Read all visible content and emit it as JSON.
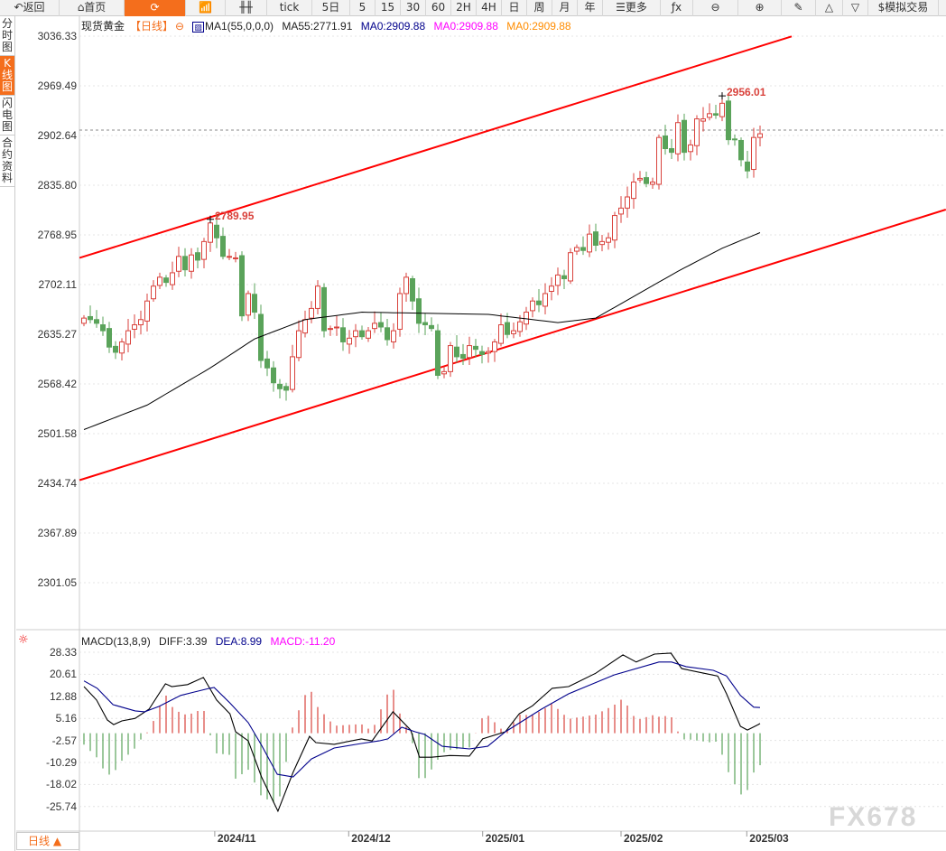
{
  "toolbar": {
    "items": [
      {
        "label": "↶返回",
        "icon": "back-icon",
        "w": 66
      },
      {
        "label": "⌂首页",
        "icon": "home-icon",
        "w": 72
      },
      {
        "label": "⟳",
        "icon": "refresh-icon",
        "w": 68,
        "active": true
      },
      {
        "label": "📶",
        "icon": "chart-icon",
        "w": 44
      },
      {
        "label": "╫╫",
        "icon": "candlestick-icon",
        "w": 46
      },
      {
        "label": "tick",
        "w": 50
      },
      {
        "label": "5日",
        "w": 42
      },
      {
        "label": "5",
        "w": 28
      },
      {
        "label": "15",
        "w": 28
      },
      {
        "label": "30",
        "w": 28
      },
      {
        "label": "60",
        "w": 28
      },
      {
        "label": "2H",
        "w": 28
      },
      {
        "label": "4H",
        "w": 28
      },
      {
        "label": "日",
        "w": 28
      },
      {
        "label": "周",
        "w": 28
      },
      {
        "label": "月",
        "w": 28
      },
      {
        "label": "年",
        "w": 28
      },
      {
        "label": "☰更多",
        "icon": "menu-icon",
        "w": 64
      },
      {
        "label": "ƒx",
        "icon": "formula-icon",
        "w": 36
      },
      {
        "label": "⊖",
        "icon": "zoom-out-icon",
        "w": 50
      },
      {
        "label": "⊕",
        "icon": "zoom-in-icon",
        "w": 48
      },
      {
        "label": "✎",
        "icon": "pen-icon",
        "w": 38
      },
      {
        "label": "△",
        "icon": "triangle-up-icon",
        "w": 30
      },
      {
        "label": "▽",
        "icon": "triangle-down-icon",
        "w": 28
      },
      {
        "label": "$模拟交易",
        "icon": "dollar-icon",
        "w": 78
      }
    ]
  },
  "sidebar": {
    "tabs": [
      {
        "label": "分时图"
      },
      {
        "label": "K线图",
        "active": true
      },
      {
        "label": "闪电图"
      },
      {
        "label": "合约资料"
      }
    ]
  },
  "legend": {
    "name": "现货黄金",
    "period": "【日线】",
    "ma_def": "MA1(55,0,0,0)",
    "ma55": "MA55:2771.91",
    "ma0a": "MA0:2909.88",
    "ma0b": "MA0:2909.88",
    "ma0c": "MA0:2909.88"
  },
  "macd_legend": {
    "name": "MACD(13,8,9)",
    "diff": "DIFF:3.39",
    "dea": "DEA:8.99",
    "macd": "MACD:-11.20"
  },
  "period_button": "日线 ▲",
  "watermark": "FX678",
  "colors": {
    "up": "#d9423c",
    "down": "#5aa35a",
    "channel": "#ff0000",
    "accent": "#f46e1c",
    "dea": "#00008b",
    "ma0a": "#00008b",
    "ma0b": "#ff00ff",
    "ma0c": "#ff8c00"
  },
  "chart_data": [
    {
      "type": "candlestick",
      "title": "现货黄金 日线",
      "y_ticks": [
        "3036.33",
        "2969.49",
        "2902.64",
        "2835.80",
        "2768.95",
        "2702.11",
        "2635.27",
        "2568.42",
        "2501.58",
        "2434.74",
        "2367.89",
        "2301.05"
      ],
      "ylim": [
        2301.05,
        3036.33
      ],
      "x_ticks": [
        {
          "label": "2024/11",
          "index": 20.7
        },
        {
          "label": "2024/12",
          "index": 41.9
        },
        {
          "label": "2025/01",
          "index": 63.1
        },
        {
          "label": "2025/02",
          "index": 85
        },
        {
          "label": "2025/03",
          "index": 104.9
        }
      ],
      "closes": [
        2657,
        2655,
        2650,
        2640,
        2618,
        2611,
        2625,
        2640,
        2648,
        2655,
        2680,
        2700,
        2712,
        2705,
        2718,
        2740,
        2722,
        2742,
        2735,
        2760,
        2785,
        2765,
        2740,
        2740,
        2738,
        2660,
        2690,
        2665,
        2600,
        2590,
        2570,
        2562,
        2560,
        2605,
        2640,
        2655,
        2670,
        2700,
        2640,
        2643,
        2645,
        2625,
        2630,
        2640,
        2632,
        2640,
        2650,
        2645,
        2628,
        2640,
        2690,
        2712,
        2680,
        2650,
        2648,
        2643,
        2580,
        2585,
        2620,
        2605,
        2603,
        2620,
        2615,
        2608,
        2612,
        2625,
        2648,
        2635,
        2640,
        2652,
        2665,
        2680,
        2675,
        2690,
        2700,
        2715,
        2710,
        2745,
        2752,
        2748,
        2770,
        2755,
        2760,
        2765,
        2795,
        2805,
        2820,
        2840,
        2845,
        2838,
        2840,
        2900,
        2885,
        2880,
        2920,
        2880,
        2890,
        2925,
        2925,
        2932,
        2930,
        2946,
        2897,
        2897,
        2870,
        2855,
        2900,
        2905
      ],
      "annotations": [
        {
          "label": "2789.95",
          "index": 20,
          "value": 2789.95
        },
        {
          "label": "2956.01",
          "index": 101,
          "value": 2956.01
        }
      ],
      "last_price": 2909.88,
      "ma55_points": [
        [
          0,
          2507
        ],
        [
          10,
          2540
        ],
        [
          20,
          2590
        ],
        [
          27,
          2629
        ],
        [
          35,
          2655
        ],
        [
          44,
          2665
        ],
        [
          64,
          2662
        ],
        [
          75,
          2651
        ],
        [
          81,
          2657
        ],
        [
          94,
          2720
        ],
        [
          101,
          2751
        ],
        [
          107,
          2772
        ]
      ],
      "channel_upper": [
        [
          -0.7,
          2738
        ],
        [
          112,
          3036
        ]
      ],
      "channel_lower": [
        [
          -0.7,
          2439
        ],
        [
          136.4,
          2803
        ]
      ]
    },
    {
      "type": "line+bar",
      "title": "MACD(13,8,9)",
      "y_ticks": [
        "28.33",
        "20.61",
        "12.88",
        "5.16",
        "-2.57",
        "-10.29",
        "-18.02",
        "-25.74"
      ],
      "ylim": [
        -25.74,
        28.33
      ],
      "diff_points": [
        [
          0,
          16.3
        ],
        [
          2,
          11.6
        ],
        [
          3.7,
          4.6
        ],
        [
          4.7,
          3.0
        ],
        [
          6,
          4.3
        ],
        [
          8.1,
          5.2
        ],
        [
          10.3,
          8.4
        ],
        [
          12.9,
          17.3
        ],
        [
          13.9,
          16.3
        ],
        [
          16.4,
          17
        ],
        [
          18.9,
          19.5
        ],
        [
          21,
          11.6
        ],
        [
          23.1,
          6.8
        ],
        [
          24,
          0.5
        ],
        [
          26,
          -2.7
        ],
        [
          28.1,
          -15.3
        ],
        [
          30.7,
          -27.3
        ],
        [
          33.1,
          -13.7
        ],
        [
          35.7,
          -1.1
        ],
        [
          36.7,
          -3.3
        ],
        [
          39.6,
          -3.9
        ],
        [
          43.9,
          -2
        ],
        [
          45.6,
          -2.7
        ],
        [
          48.9,
          7.5
        ],
        [
          51.7,
          1.1
        ],
        [
          53.1,
          -8.4
        ],
        [
          55,
          -8.4
        ],
        [
          57.9,
          -7.8
        ],
        [
          61,
          -8
        ],
        [
          63.1,
          -2
        ],
        [
          66.7,
          0.5
        ],
        [
          68.9,
          6.8
        ],
        [
          71,
          9.6
        ],
        [
          74.1,
          15.7
        ],
        [
          76.7,
          16.3
        ],
        [
          81,
          21
        ],
        [
          85.3,
          27.4
        ],
        [
          87.4,
          24.9
        ],
        [
          90.3,
          27.7
        ],
        [
          92.9,
          28
        ],
        [
          94.6,
          22.6
        ],
        [
          98.1,
          21
        ],
        [
          100.3,
          20
        ],
        [
          101.7,
          13.8
        ],
        [
          103.9,
          2.4
        ],
        [
          105,
          1.1
        ],
        [
          106.7,
          3.0
        ],
        [
          107,
          3.39
        ]
      ],
      "dea_points": [
        [
          0,
          18.3
        ],
        [
          2.1,
          15.7
        ],
        [
          4.6,
          10
        ],
        [
          8.1,
          7.8
        ],
        [
          9.6,
          7.5
        ],
        [
          11.9,
          9.4
        ],
        [
          15.3,
          13.2
        ],
        [
          17.4,
          14.4
        ],
        [
          19.9,
          15.7
        ],
        [
          20.6,
          16
        ],
        [
          23.1,
          10.6
        ],
        [
          26,
          3.7
        ],
        [
          28.1,
          -4.2
        ],
        [
          30.6,
          -14.4
        ],
        [
          33.1,
          -15.3
        ],
        [
          36,
          -9
        ],
        [
          39.6,
          -5.2
        ],
        [
          43.9,
          -3.6
        ],
        [
          46.7,
          -2.7
        ],
        [
          48.1,
          -2
        ],
        [
          50.3,
          2.1
        ],
        [
          52.4,
          0.5
        ],
        [
          53.9,
          -0.4
        ],
        [
          56.7,
          -4.6
        ],
        [
          61,
          -5.5
        ],
        [
          63.9,
          -4.6
        ],
        [
          66.7,
          0.5
        ],
        [
          72.4,
          8.4
        ],
        [
          76.7,
          13.8
        ],
        [
          83.9,
          20.4
        ],
        [
          91,
          24.9
        ],
        [
          93,
          24.9
        ],
        [
          95.3,
          23.3
        ],
        [
          99.6,
          22
        ],
        [
          101.7,
          20
        ],
        [
          103.9,
          13.2
        ],
        [
          106,
          9.1
        ],
        [
          107,
          8.99
        ]
      ],
      "histogram": "2*(DIFF-DEA)"
    }
  ]
}
